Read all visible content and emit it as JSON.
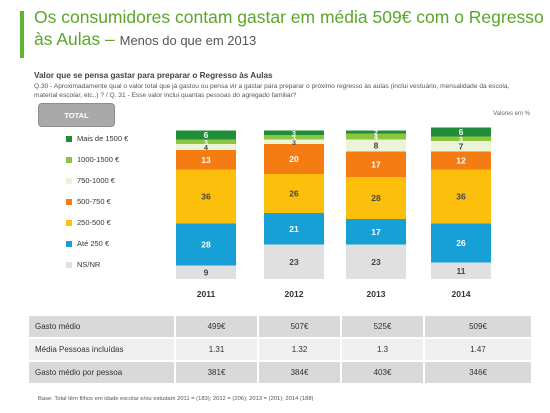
{
  "page": {
    "title": "Os consumidores contam gastar em média 509€ com o Regresso às Aulas",
    "title_dash": " – ",
    "subtitle": "Menos do que em 2013",
    "header_bold": "Valor que se pensa gastar para preparar o Regresso às Aulas",
    "question_text": "Q.30 - Aproximadamente qual o valor total que já gastou ou pensa vir a gastar para preparar o próximo regresso às aulas (inclui vestuário, mensalidade da escola, material escolar, etc..) ?  / Q. 31 - Esse valor inclui quantas pessoas do agregado familiar?",
    "valores_note": "Valores em %",
    "total_button": "TOTAL",
    "footnote": "Base: Total têm filhos em idade escolar e/ou estudam 2011 = (183); 2012 = (206); 2013 = (201); 2014 (188)"
  },
  "chart_data": {
    "type": "bar",
    "stacked": true,
    "categories": [
      "2011",
      "2012",
      "2013",
      "2014"
    ],
    "ylim": [
      0,
      100
    ],
    "legend_placement": "left",
    "series": [
      {
        "name": "NS/NR",
        "color": "#e0e0e0",
        "values": [
          9,
          23,
          23,
          11
        ]
      },
      {
        "name": "Até 250 €",
        "color": "#16a0d5",
        "values": [
          28,
          21,
          17,
          26
        ]
      },
      {
        "name": "250-500 €",
        "color": "#fcbf0b",
        "values": [
          36,
          26,
          28,
          36
        ]
      },
      {
        "name": "500-750 €",
        "color": "#f57c12",
        "values": [
          13,
          20,
          17,
          12
        ]
      },
      {
        "name": "750-1000 €",
        "color": "#ebf3d8",
        "values": [
          4,
          3,
          8,
          7
        ]
      },
      {
        "name": "1000-1500 €",
        "color": "#8cc63e",
        "values": [
          3,
          3,
          4,
          3
        ]
      },
      {
        "name": "Mais de 1500 €",
        "color": "#218c3a",
        "values": [
          6,
          3,
          2,
          6
        ]
      }
    ]
  },
  "table": {
    "rows": [
      {
        "label": "Gasto médio",
        "values": [
          "499€",
          "507€",
          "525€",
          "509€"
        ]
      },
      {
        "label": "Média Pessoas incluídas",
        "values": [
          "1.31",
          "1.32",
          "1.3",
          "1.47"
        ]
      },
      {
        "label": "Gasto médio por pessoa",
        "values": [
          "381€",
          "384€",
          "403€",
          "346€"
        ]
      }
    ],
    "row_colors": [
      "#d9d9d9",
      "#efefef",
      "#d9d9d9"
    ]
  }
}
